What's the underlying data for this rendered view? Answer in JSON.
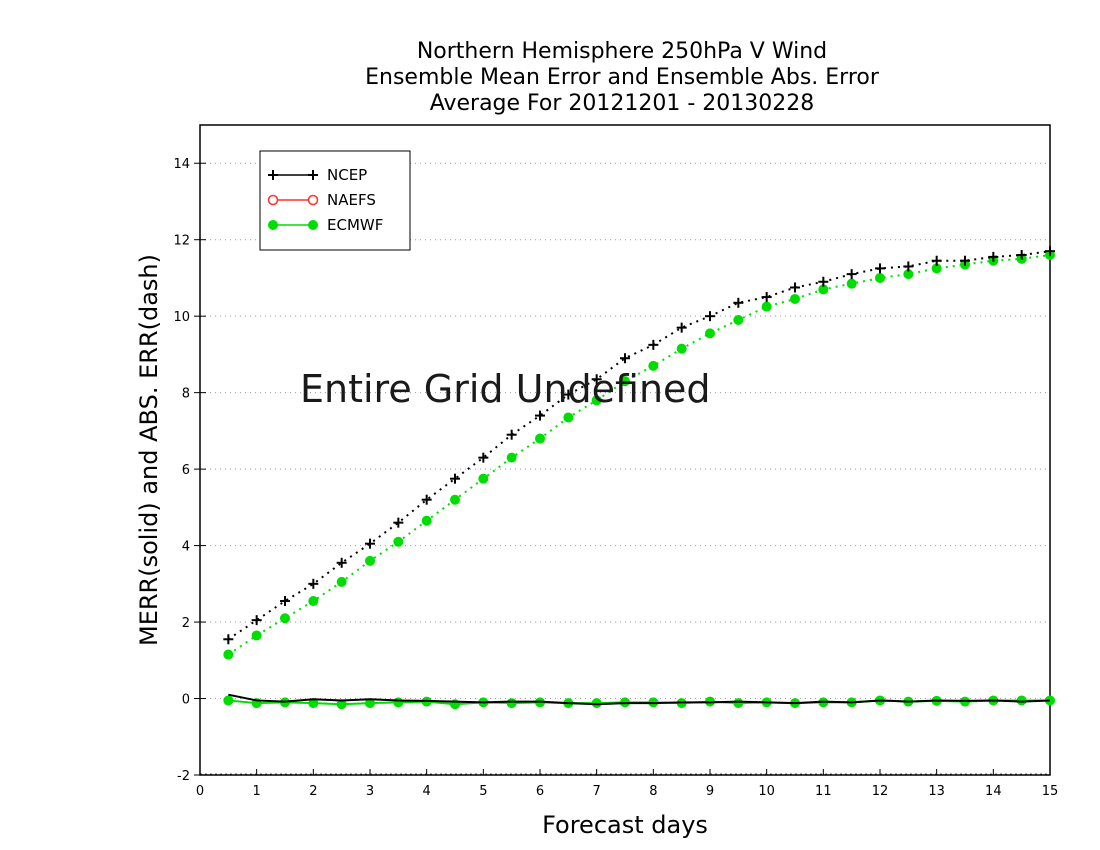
{
  "chart_data": {
    "type": "line",
    "title": [
      "Northern Hemisphere 250hPa V Wind",
      "Ensemble Mean Error and Ensemble Abs. Error",
      "Average For 20121201 - 20130228"
    ],
    "xlabel": "Forecast days",
    "ylabel": "MERR(solid) and ABS. ERR(dash)",
    "xlim": [
      0,
      15
    ],
    "ylim": [
      -2,
      15
    ],
    "xticks": [
      "0",
      "1",
      "2",
      "3",
      "4",
      "5",
      "6",
      "7",
      "8",
      "9",
      "10",
      "11",
      "12",
      "13",
      "14",
      "15"
    ],
    "yticks": [
      "-2",
      "0",
      "2",
      "4",
      "6",
      "8",
      "10",
      "12",
      "14"
    ],
    "grid": "horizontal dotted",
    "legend_position": "top-left",
    "annotation": "Entire Grid Undefined",
    "x": [
      0.5,
      1,
      1.5,
      2,
      2.5,
      3,
      3.5,
      4,
      4.5,
      5,
      5.5,
      6,
      6.5,
      7,
      7.5,
      8,
      8.5,
      9,
      9.5,
      10,
      10.5,
      11,
      11.5,
      12,
      12.5,
      13,
      13.5,
      14,
      14.5,
      15
    ],
    "series": [
      {
        "name": "NCEP",
        "color": "#000000",
        "marker": "plus",
        "merr": [
          0.1,
          -0.05,
          -0.08,
          -0.02,
          -0.05,
          -0.02,
          -0.05,
          -0.06,
          -0.08,
          -0.1,
          -0.08,
          -0.08,
          -0.12,
          -0.15,
          -0.12,
          -0.12,
          -0.1,
          -0.1,
          -0.08,
          -0.1,
          -0.12,
          -0.08,
          -0.1,
          -0.05,
          -0.08,
          -0.05,
          -0.06,
          -0.05,
          -0.08,
          -0.05
        ],
        "abs_err": [
          1.55,
          2.05,
          2.55,
          3.0,
          3.55,
          4.05,
          4.6,
          5.2,
          5.75,
          6.3,
          6.9,
          7.4,
          7.95,
          8.35,
          8.9,
          9.25,
          9.7,
          10.0,
          10.35,
          10.5,
          10.75,
          10.9,
          11.1,
          11.25,
          11.3,
          11.45,
          11.45,
          11.55,
          11.6,
          11.7
        ]
      },
      {
        "name": "NAEFS",
        "color": "#ff3030",
        "marker": "open-circle",
        "merr": [],
        "abs_err": []
      },
      {
        "name": "ECMWF",
        "color": "#00dd00",
        "marker": "filled-circle",
        "merr": [
          -0.05,
          -0.12,
          -0.1,
          -0.12,
          -0.15,
          -0.12,
          -0.1,
          -0.08,
          -0.15,
          -0.1,
          -0.12,
          -0.1,
          -0.12,
          -0.12,
          -0.1,
          -0.1,
          -0.12,
          -0.08,
          -0.12,
          -0.1,
          -0.12,
          -0.1,
          -0.1,
          -0.05,
          -0.08,
          -0.06,
          -0.08,
          -0.05,
          -0.05,
          -0.05
        ],
        "abs_err": [
          1.15,
          1.65,
          2.1,
          2.55,
          3.05,
          3.6,
          4.1,
          4.65,
          5.2,
          5.75,
          6.3,
          6.8,
          7.35,
          7.8,
          8.3,
          8.7,
          9.15,
          9.55,
          9.9,
          10.25,
          10.45,
          10.7,
          10.85,
          11.0,
          11.1,
          11.25,
          11.35,
          11.45,
          11.5,
          11.6
        ]
      }
    ]
  }
}
